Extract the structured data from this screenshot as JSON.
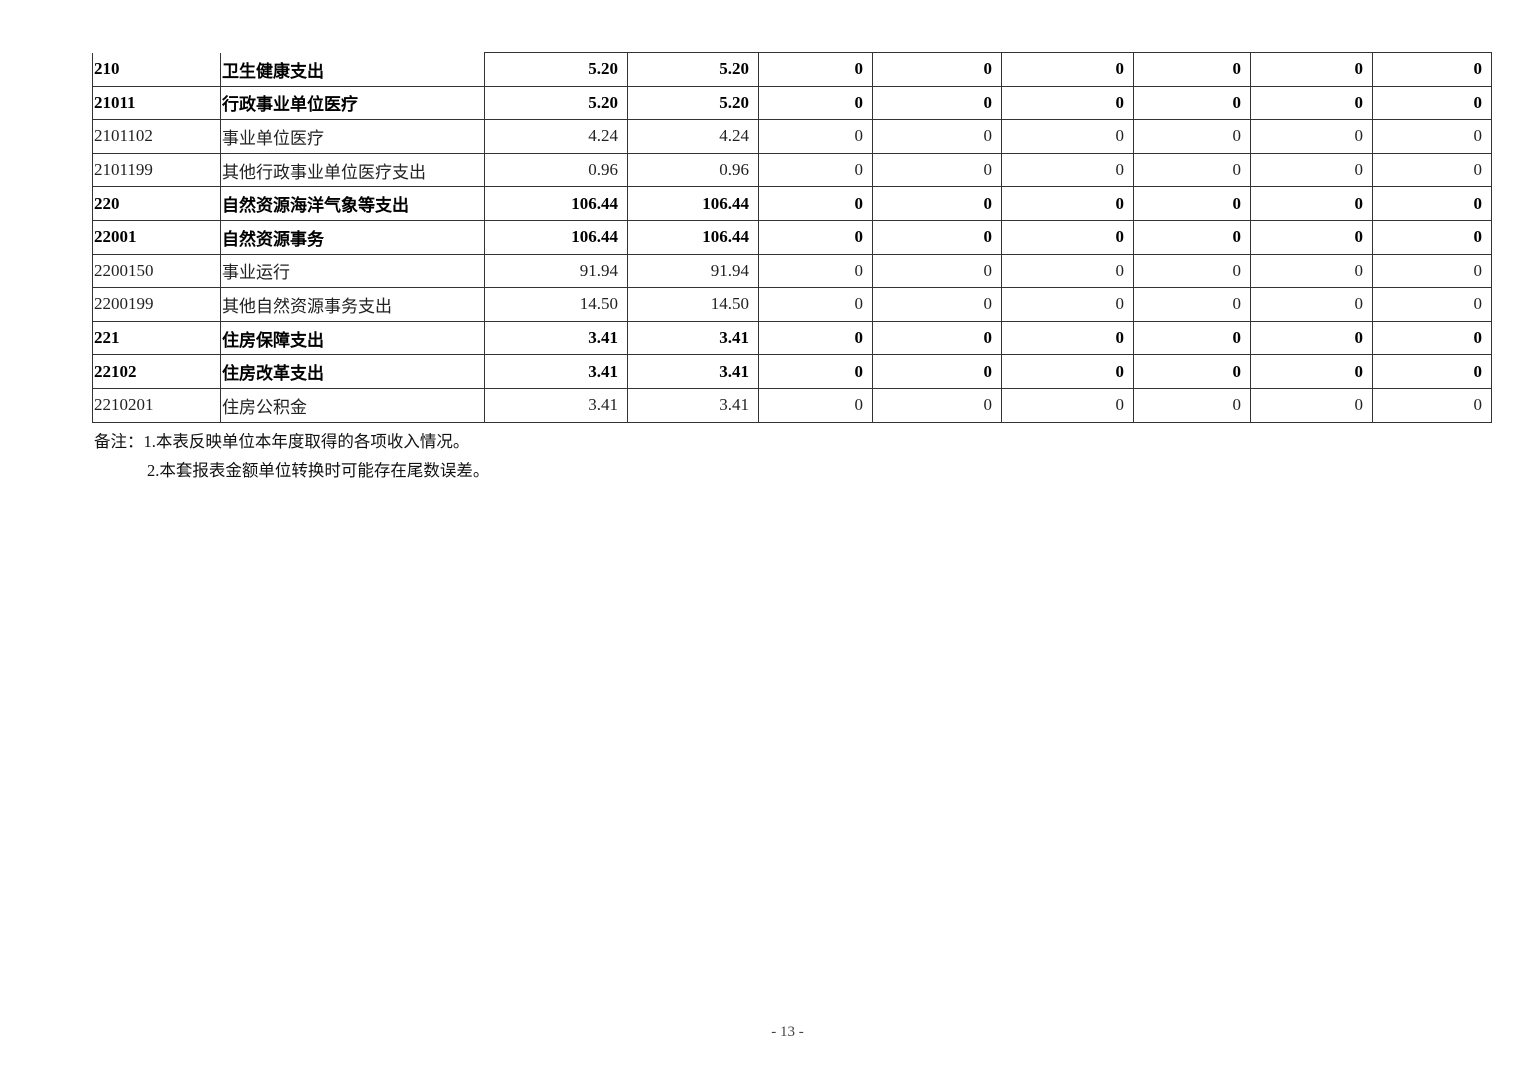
{
  "table": {
    "rows": [
      {
        "code": "210",
        "name": "卫生健康支出",
        "bold": true,
        "values": [
          "5.20",
          "5.20",
          "0",
          "0",
          "0",
          "0",
          "0",
          "0"
        ]
      },
      {
        "code": "21011",
        "name": "行政事业单位医疗",
        "bold": true,
        "values": [
          "5.20",
          "5.20",
          "0",
          "0",
          "0",
          "0",
          "0",
          "0"
        ]
      },
      {
        "code": "2101102",
        "name": "事业单位医疗",
        "bold": false,
        "values": [
          "4.24",
          "4.24",
          "0",
          "0",
          "0",
          "0",
          "0",
          "0"
        ]
      },
      {
        "code": "2101199",
        "name": "其他行政事业单位医疗支出",
        "bold": false,
        "values": [
          "0.96",
          "0.96",
          "0",
          "0",
          "0",
          "0",
          "0",
          "0"
        ]
      },
      {
        "code": "220",
        "name": "自然资源海洋气象等支出",
        "bold": true,
        "values": [
          "106.44",
          "106.44",
          "0",
          "0",
          "0",
          "0",
          "0",
          "0"
        ]
      },
      {
        "code": "22001",
        "name": "自然资源事务",
        "bold": true,
        "values": [
          "106.44",
          "106.44",
          "0",
          "0",
          "0",
          "0",
          "0",
          "0"
        ]
      },
      {
        "code": "2200150",
        "name": "事业运行",
        "bold": false,
        "values": [
          "91.94",
          "91.94",
          "0",
          "0",
          "0",
          "0",
          "0",
          "0"
        ]
      },
      {
        "code": "2200199",
        "name": "其他自然资源事务支出",
        "bold": false,
        "values": [
          "14.50",
          "14.50",
          "0",
          "0",
          "0",
          "0",
          "0",
          "0"
        ]
      },
      {
        "code": "221",
        "name": "住房保障支出",
        "bold": true,
        "values": [
          "3.41",
          "3.41",
          "0",
          "0",
          "0",
          "0",
          "0",
          "0"
        ]
      },
      {
        "code": "22102",
        "name": "住房改革支出",
        "bold": true,
        "values": [
          "3.41",
          "3.41",
          "0",
          "0",
          "0",
          "0",
          "0",
          "0"
        ]
      },
      {
        "code": "2210201",
        "name": "住房公积金",
        "bold": false,
        "values": [
          "3.41",
          "3.41",
          "0",
          "0",
          "0",
          "0",
          "0",
          "0"
        ]
      }
    ]
  },
  "notes": {
    "line1": "备注：1.本表反映单位本年度取得的各项收入情况。",
    "line2": "2.本套报表金额单位转换时可能存在尾数误差。"
  },
  "page_number": "- 13 -"
}
